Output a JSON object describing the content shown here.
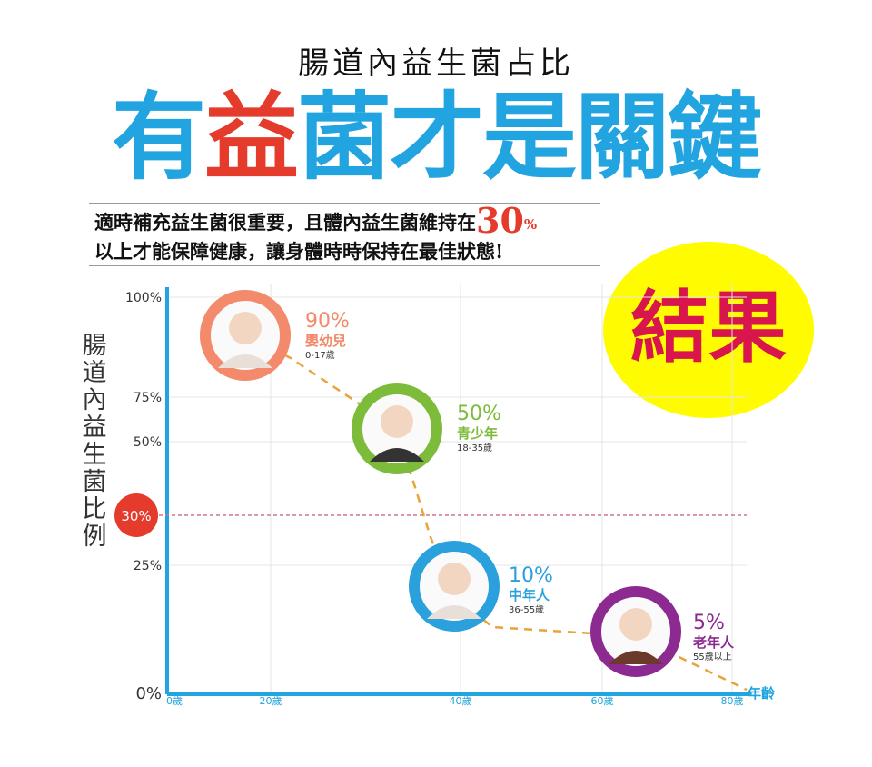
{
  "colors": {
    "blue": "#21a4df",
    "red": "#e53b2c",
    "yellow": "#fffb00",
    "magenta": "#d8154c",
    "baby_ring": "#f28a6b",
    "teen_ring": "#7dbb3a",
    "adult_ring": "#2aa0dc",
    "senior_ring": "#8c2a92",
    "dash_line": "#e8a33a",
    "threshold": "#d07788"
  },
  "header": {
    "subtitle": "腸道內益生菌占比",
    "headline": [
      {
        "text": "有",
        "color": "#21a4df"
      },
      {
        "text": "益",
        "color": "#e53b2c"
      },
      {
        "text": "菌才是關鍵",
        "color": "#21a4df"
      }
    ]
  },
  "intro": {
    "line1_prefix": "適時補充益生菌很重要，且體內益生菌維持在",
    "line1_big": "30",
    "line1_pct": "%",
    "line2": "以上才能保障健康，讓身體時時保持在最佳狀態!"
  },
  "badge": {
    "text": "結果"
  },
  "chart_data": {
    "type": "line",
    "ylabel": "腸道內益生菌比例",
    "xlabel": "年齡",
    "y_ticks": [
      "100%",
      "75%",
      "50%",
      "25%",
      "0%"
    ],
    "x_ticks": [
      "0歲",
      "20歲",
      "40歲",
      "60歲",
      "80歲"
    ],
    "threshold": {
      "label": "30%"
    },
    "groups": [
      {
        "percent": "90%",
        "name": "嬰幼兒",
        "range": "0-17歲",
        "icon": "baby-icon"
      },
      {
        "percent": "50%",
        "name": "青少年",
        "range": "18-35歲",
        "icon": "young-man-icon"
      },
      {
        "percent": "10%",
        "name": "中年人",
        "range": "36-55歲",
        "icon": "woman-icon"
      },
      {
        "percent": "5%",
        "name": "老年人",
        "range": "55歲以上",
        "icon": "senior-man-icon"
      }
    ]
  }
}
